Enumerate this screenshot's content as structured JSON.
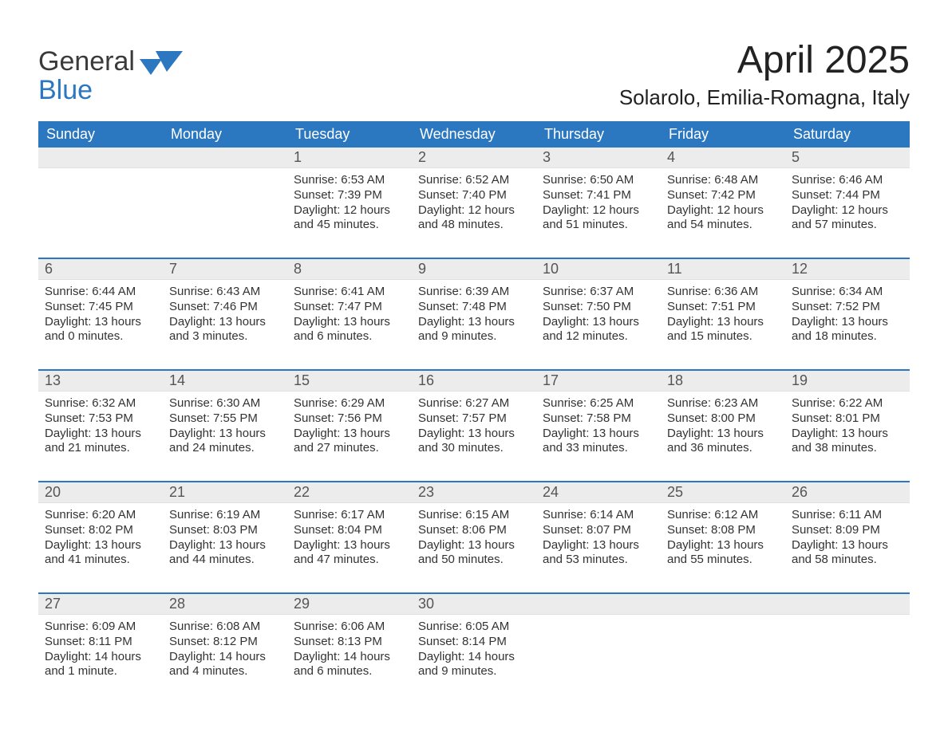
{
  "brand": {
    "line1": "General",
    "line2": "Blue"
  },
  "colors": {
    "accent": "#2b77c0",
    "header_text": "#ffffff",
    "daynum_bg": "#ececec",
    "text": "#333333",
    "page_bg": "#ffffff"
  },
  "title": {
    "month": "April 2025",
    "location": "Solarolo, Emilia-Romagna, Italy"
  },
  "days_of_week": [
    "Sunday",
    "Monday",
    "Tuesday",
    "Wednesday",
    "Thursday",
    "Friday",
    "Saturday"
  ],
  "weeks": [
    [
      null,
      null,
      {
        "n": "1",
        "sunrise": "Sunrise: 6:53 AM",
        "sunset": "Sunset: 7:39 PM",
        "daylight": "Daylight: 12 hours and 45 minutes."
      },
      {
        "n": "2",
        "sunrise": "Sunrise: 6:52 AM",
        "sunset": "Sunset: 7:40 PM",
        "daylight": "Daylight: 12 hours and 48 minutes."
      },
      {
        "n": "3",
        "sunrise": "Sunrise: 6:50 AM",
        "sunset": "Sunset: 7:41 PM",
        "daylight": "Daylight: 12 hours and 51 minutes."
      },
      {
        "n": "4",
        "sunrise": "Sunrise: 6:48 AM",
        "sunset": "Sunset: 7:42 PM",
        "daylight": "Daylight: 12 hours and 54 minutes."
      },
      {
        "n": "5",
        "sunrise": "Sunrise: 6:46 AM",
        "sunset": "Sunset: 7:44 PM",
        "daylight": "Daylight: 12 hours and 57 minutes."
      }
    ],
    [
      {
        "n": "6",
        "sunrise": "Sunrise: 6:44 AM",
        "sunset": "Sunset: 7:45 PM",
        "daylight": "Daylight: 13 hours and 0 minutes."
      },
      {
        "n": "7",
        "sunrise": "Sunrise: 6:43 AM",
        "sunset": "Sunset: 7:46 PM",
        "daylight": "Daylight: 13 hours and 3 minutes."
      },
      {
        "n": "8",
        "sunrise": "Sunrise: 6:41 AM",
        "sunset": "Sunset: 7:47 PM",
        "daylight": "Daylight: 13 hours and 6 minutes."
      },
      {
        "n": "9",
        "sunrise": "Sunrise: 6:39 AM",
        "sunset": "Sunset: 7:48 PM",
        "daylight": "Daylight: 13 hours and 9 minutes."
      },
      {
        "n": "10",
        "sunrise": "Sunrise: 6:37 AM",
        "sunset": "Sunset: 7:50 PM",
        "daylight": "Daylight: 13 hours and 12 minutes."
      },
      {
        "n": "11",
        "sunrise": "Sunrise: 6:36 AM",
        "sunset": "Sunset: 7:51 PM",
        "daylight": "Daylight: 13 hours and 15 minutes."
      },
      {
        "n": "12",
        "sunrise": "Sunrise: 6:34 AM",
        "sunset": "Sunset: 7:52 PM",
        "daylight": "Daylight: 13 hours and 18 minutes."
      }
    ],
    [
      {
        "n": "13",
        "sunrise": "Sunrise: 6:32 AM",
        "sunset": "Sunset: 7:53 PM",
        "daylight": "Daylight: 13 hours and 21 minutes."
      },
      {
        "n": "14",
        "sunrise": "Sunrise: 6:30 AM",
        "sunset": "Sunset: 7:55 PM",
        "daylight": "Daylight: 13 hours and 24 minutes."
      },
      {
        "n": "15",
        "sunrise": "Sunrise: 6:29 AM",
        "sunset": "Sunset: 7:56 PM",
        "daylight": "Daylight: 13 hours and 27 minutes."
      },
      {
        "n": "16",
        "sunrise": "Sunrise: 6:27 AM",
        "sunset": "Sunset: 7:57 PM",
        "daylight": "Daylight: 13 hours and 30 minutes."
      },
      {
        "n": "17",
        "sunrise": "Sunrise: 6:25 AM",
        "sunset": "Sunset: 7:58 PM",
        "daylight": "Daylight: 13 hours and 33 minutes."
      },
      {
        "n": "18",
        "sunrise": "Sunrise: 6:23 AM",
        "sunset": "Sunset: 8:00 PM",
        "daylight": "Daylight: 13 hours and 36 minutes."
      },
      {
        "n": "19",
        "sunrise": "Sunrise: 6:22 AM",
        "sunset": "Sunset: 8:01 PM",
        "daylight": "Daylight: 13 hours and 38 minutes."
      }
    ],
    [
      {
        "n": "20",
        "sunrise": "Sunrise: 6:20 AM",
        "sunset": "Sunset: 8:02 PM",
        "daylight": "Daylight: 13 hours and 41 minutes."
      },
      {
        "n": "21",
        "sunrise": "Sunrise: 6:19 AM",
        "sunset": "Sunset: 8:03 PM",
        "daylight": "Daylight: 13 hours and 44 minutes."
      },
      {
        "n": "22",
        "sunrise": "Sunrise: 6:17 AM",
        "sunset": "Sunset: 8:04 PM",
        "daylight": "Daylight: 13 hours and 47 minutes."
      },
      {
        "n": "23",
        "sunrise": "Sunrise: 6:15 AM",
        "sunset": "Sunset: 8:06 PM",
        "daylight": "Daylight: 13 hours and 50 minutes."
      },
      {
        "n": "24",
        "sunrise": "Sunrise: 6:14 AM",
        "sunset": "Sunset: 8:07 PM",
        "daylight": "Daylight: 13 hours and 53 minutes."
      },
      {
        "n": "25",
        "sunrise": "Sunrise: 6:12 AM",
        "sunset": "Sunset: 8:08 PM",
        "daylight": "Daylight: 13 hours and 55 minutes."
      },
      {
        "n": "26",
        "sunrise": "Sunrise: 6:11 AM",
        "sunset": "Sunset: 8:09 PM",
        "daylight": "Daylight: 13 hours and 58 minutes."
      }
    ],
    [
      {
        "n": "27",
        "sunrise": "Sunrise: 6:09 AM",
        "sunset": "Sunset: 8:11 PM",
        "daylight": "Daylight: 14 hours and 1 minute."
      },
      {
        "n": "28",
        "sunrise": "Sunrise: 6:08 AM",
        "sunset": "Sunset: 8:12 PM",
        "daylight": "Daylight: 14 hours and 4 minutes."
      },
      {
        "n": "29",
        "sunrise": "Sunrise: 6:06 AM",
        "sunset": "Sunset: 8:13 PM",
        "daylight": "Daylight: 14 hours and 6 minutes."
      },
      {
        "n": "30",
        "sunrise": "Sunrise: 6:05 AM",
        "sunset": "Sunset: 8:14 PM",
        "daylight": "Daylight: 14 hours and 9 minutes."
      },
      null,
      null,
      null
    ]
  ]
}
